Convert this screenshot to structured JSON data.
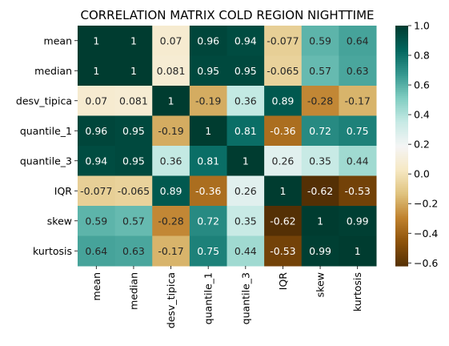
{
  "chart_data": {
    "type": "heatmap",
    "title": "CORRELATION MATRIX COLD REGION NIGHTTIME",
    "xlabel": "",
    "ylabel": "",
    "row_labels": [
      "mean",
      "median",
      "desv_tipica",
      "quantile_1",
      "quantile_3",
      "IQR",
      "skew",
      "kurtosis"
    ],
    "col_labels": [
      "mean",
      "median",
      "desv_tipica",
      "quantile_1",
      "quantile_3",
      "IQR",
      "skew",
      "kurtosis"
    ],
    "values": [
      [
        1,
        1,
        0.07,
        0.96,
        0.94,
        -0.077,
        0.59,
        0.64
      ],
      [
        1,
        1,
        0.081,
        0.95,
        0.95,
        -0.065,
        0.57,
        0.63
      ],
      [
        0.07,
        0.081,
        1,
        -0.19,
        0.36,
        0.89,
        -0.28,
        -0.17
      ],
      [
        0.96,
        0.95,
        -0.19,
        1,
        0.81,
        -0.36,
        0.72,
        0.75
      ],
      [
        0.94,
        0.95,
        0.36,
        0.81,
        1,
        0.26,
        0.35,
        0.44
      ],
      [
        -0.077,
        -0.065,
        0.89,
        -0.36,
        0.26,
        1,
        -0.62,
        -0.53
      ],
      [
        0.59,
        0.57,
        -0.28,
        0.72,
        0.35,
        -0.62,
        1,
        0.99
      ],
      [
        0.64,
        0.63,
        -0.17,
        0.75,
        0.44,
        -0.53,
        0.99,
        1
      ]
    ],
    "cell_labels": [
      [
        "1",
        "1",
        "0.07",
        "0.96",
        "0.94",
        "-0.077",
        "0.59",
        "0.64"
      ],
      [
        "1",
        "1",
        "0.081",
        "0.95",
        "0.95",
        "-0.065",
        "0.57",
        "0.63"
      ],
      [
        "0.07",
        "0.081",
        "1",
        "-0.19",
        "0.36",
        "0.89",
        "-0.28",
        "-0.17"
      ],
      [
        "0.96",
        "0.95",
        "-0.19",
        "1",
        "0.81",
        "-0.36",
        "0.72",
        "0.75"
      ],
      [
        "0.94",
        "0.95",
        "0.36",
        "0.81",
        "1",
        "0.26",
        "0.35",
        "0.44"
      ],
      [
        "-0.077",
        "-0.065",
        "0.89",
        "-0.36",
        "0.26",
        "1",
        "-0.62",
        "-0.53"
      ],
      [
        "0.59",
        "0.57",
        "-0.28",
        "0.72",
        "0.35",
        "-0.62",
        "1",
        "0.99"
      ],
      [
        "0.64",
        "0.63",
        "-0.17",
        "0.75",
        "0.44",
        "-0.53",
        "0.99",
        "1"
      ]
    ],
    "vmin": -0.62,
    "vmax": 1.0,
    "colormap": "BrBG",
    "colorbar_ticks": [
      1.0,
      0.8,
      0.6,
      0.4,
      0.2,
      0.0,
      -0.2,
      -0.4,
      -0.6
    ],
    "colorbar_tick_labels": [
      "1.0",
      "0.8",
      "0.6",
      "0.4",
      "0.2",
      "0.0",
      "−0.2",
      "−0.4",
      "−0.6"
    ]
  }
}
